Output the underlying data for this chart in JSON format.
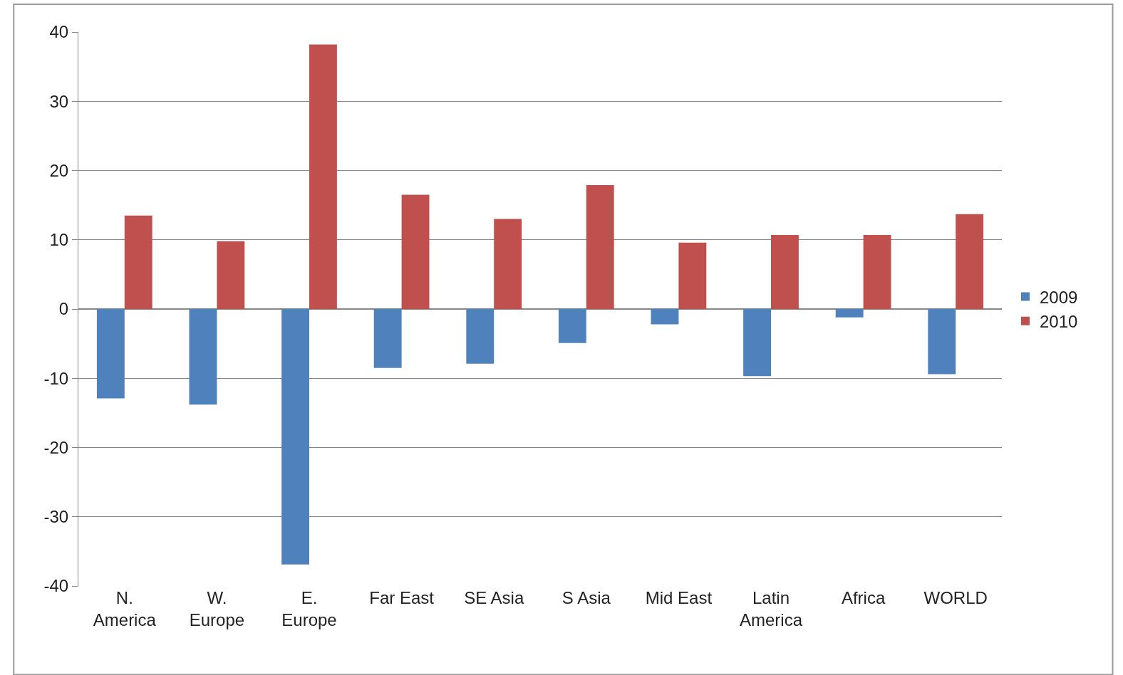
{
  "chart_data": {
    "type": "bar",
    "categories": [
      "N.\nAmerica",
      "W.\nEurope",
      "E.\nEurope",
      "Far East",
      "SE Asia",
      "S Asia",
      "Mid East",
      "Latin\nAmerica",
      "Africa",
      "WORLD"
    ],
    "series": [
      {
        "name": "2009",
        "color": "#4f81bd",
        "values": [
          -12.9,
          -13.8,
          -36.9,
          -8.5,
          -7.9,
          -4.9,
          -2.2,
          -9.7,
          -1.2,
          -9.4
        ]
      },
      {
        "name": "2010",
        "color": "#c0504d",
        "values": [
          13.5,
          9.8,
          38.2,
          16.5,
          13.0,
          17.9,
          9.6,
          10.7,
          10.7,
          13.7
        ]
      }
    ],
    "ylim": [
      -40,
      40
    ],
    "yticks": [
      -40,
      -30,
      -20,
      -10,
      0,
      10,
      20,
      30,
      40
    ],
    "grid": "y",
    "legend": "right"
  }
}
